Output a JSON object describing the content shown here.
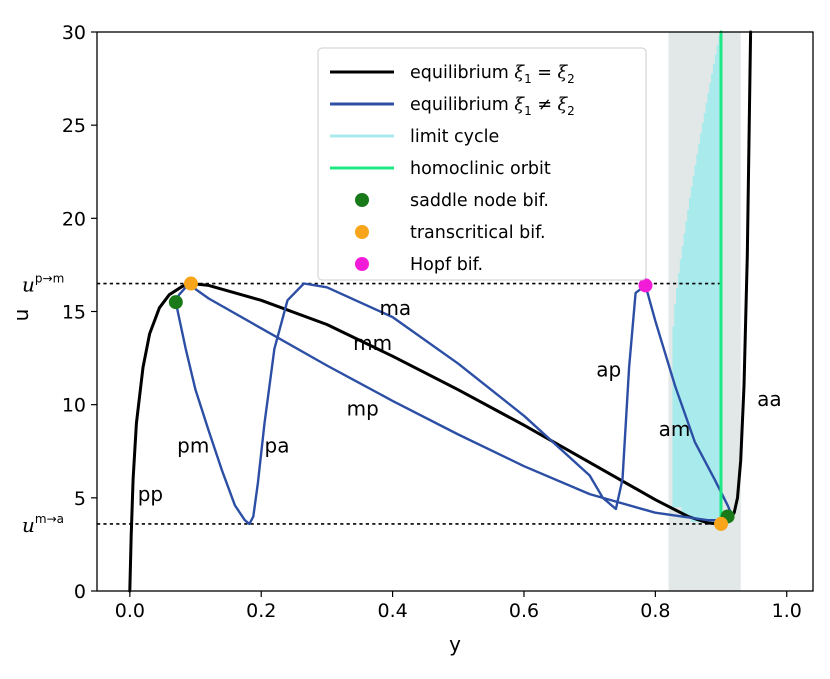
{
  "chart_data": {
    "type": "line",
    "xlabel": "y",
    "ylabel": "u",
    "xlim": [
      -0.05,
      1.04
    ],
    "ylim": [
      0,
      30
    ],
    "xticks": [
      0.0,
      0.2,
      0.4,
      0.6,
      0.8,
      1.0
    ],
    "xtick_labels": [
      "0.0",
      "0.2",
      "0.4",
      "0.6",
      "0.8",
      "1.0"
    ],
    "yticks": [
      0,
      5,
      10,
      15,
      20,
      25,
      30
    ],
    "ytick_labels": [
      "0",
      "5",
      "10",
      "15",
      "20",
      "25",
      "30"
    ],
    "threshold_lines": [
      {
        "name": "u_p_to_m",
        "label_main": "u",
        "label_sup": "p→m",
        "value": 16.5
      },
      {
        "name": "u_m_to_a",
        "label_main": "u",
        "label_sup": "m→a",
        "value": 3.6
      }
    ],
    "shaded_region": {
      "x_start": 0.82,
      "x_end": 0.93,
      "color": "#e2e8e8"
    },
    "series": [
      {
        "name": "equilibrium ξ1 = ξ2",
        "color": "#000000",
        "x": [
          0.0,
          0.002,
          0.005,
          0.01,
          0.02,
          0.03,
          0.045,
          0.06,
          0.08,
          0.093,
          0.12,
          0.2,
          0.3,
          0.4,
          0.5,
          0.6,
          0.7,
          0.8,
          0.85,
          0.88,
          0.9,
          0.91,
          0.92,
          0.925,
          0.93,
          0.935,
          0.94,
          0.945
        ],
        "y": [
          0.0,
          3.0,
          6.0,
          9.0,
          12.0,
          13.8,
          15.2,
          15.9,
          16.35,
          16.5,
          16.4,
          15.6,
          14.3,
          12.6,
          10.8,
          8.9,
          6.9,
          4.9,
          4.0,
          3.65,
          3.6,
          3.7,
          4.2,
          5.0,
          7.0,
          11.0,
          18.0,
          30.0
        ]
      },
      {
        "name": "equilibrium ξ1 ≠ ξ2",
        "color": "#2c4fa5",
        "x": [
          0.07,
          0.085,
          0.1,
          0.12,
          0.14,
          0.16,
          0.175,
          0.182,
          0.188,
          0.195,
          0.205,
          0.22,
          0.24,
          0.265,
          0.3,
          0.4,
          0.5,
          0.6,
          0.7,
          0.72,
          0.74,
          0.75,
          0.76,
          0.77,
          0.785,
          0.8,
          0.83,
          0.86,
          0.89,
          0.91,
          0.915,
          0.905,
          0.88,
          0.8,
          0.7,
          0.6,
          0.5,
          0.4,
          0.3,
          0.2,
          0.12,
          0.1,
          0.093,
          0.085,
          0.075,
          0.07
        ],
        "y": [
          15.5,
          13.0,
          10.8,
          8.6,
          6.5,
          4.6,
          3.8,
          3.6,
          4.0,
          5.8,
          9.0,
          13.0,
          15.6,
          16.5,
          16.3,
          14.7,
          12.2,
          9.4,
          6.2,
          5.0,
          4.4,
          6.0,
          12.0,
          16.0,
          16.4,
          14.5,
          11.0,
          8.0,
          6.0,
          4.6,
          4.2,
          3.8,
          3.8,
          4.2,
          5.2,
          6.7,
          8.4,
          10.2,
          12.1,
          14.1,
          15.7,
          16.2,
          16.5,
          16.3,
          15.9,
          15.5
        ]
      },
      {
        "name": "limit cycle",
        "color": "#a9ebec",
        "x": [
          0.84,
          0.85,
          0.86,
          0.87,
          0.88,
          0.89
        ],
        "y": [
          15.0,
          19.0,
          22.0,
          25.0,
          27.5,
          29.5
        ]
      },
      {
        "name": "homoclinic orbit",
        "color": "#1de884",
        "x": [
          0.9,
          0.9
        ],
        "y": [
          3.6,
          30.0
        ]
      }
    ],
    "markers": [
      {
        "name": "saddle node bif.",
        "color": "#1a7a1a",
        "points": [
          {
            "x": 0.07,
            "y": 15.5
          },
          {
            "x": 0.91,
            "y": 4.0
          }
        ]
      },
      {
        "name": "transcritical bif.",
        "color": "#f8a51b",
        "points": [
          {
            "x": 0.093,
            "y": 16.5
          },
          {
            "x": 0.9,
            "y": 3.6
          }
        ]
      },
      {
        "name": "Hopf bif.",
        "color": "#f21cd8",
        "points": [
          {
            "x": 0.785,
            "y": 16.4
          }
        ]
      }
    ],
    "branch_labels": [
      {
        "text": "pp",
        "x": 0.012,
        "y": 5.2
      },
      {
        "text": "pm",
        "x": 0.072,
        "y": 7.8
      },
      {
        "text": "pa",
        "x": 0.205,
        "y": 7.8
      },
      {
        "text": "ma",
        "x": 0.38,
        "y": 15.2
      },
      {
        "text": "mm",
        "x": 0.34,
        "y": 13.3
      },
      {
        "text": "mp",
        "x": 0.33,
        "y": 9.8
      },
      {
        "text": "ap",
        "x": 0.71,
        "y": 11.9
      },
      {
        "text": "am",
        "x": 0.805,
        "y": 8.7
      },
      {
        "text": "aa",
        "x": 0.955,
        "y": 10.3
      }
    ],
    "legend": {
      "placement": "top-center",
      "entries": [
        {
          "kind": "line",
          "color": "#000000",
          "label": "equilibrium ",
          "math": "ξ",
          "sub1": "1",
          "op": " = ",
          "math2": "ξ",
          "sub2": "2"
        },
        {
          "kind": "line",
          "color": "#2c4fa5",
          "label": "equilibrium ",
          "math": "ξ",
          "sub1": "1",
          "op": " ≠ ",
          "math2": "ξ",
          "sub2": "2"
        },
        {
          "kind": "line",
          "color": "#a9ebec",
          "label": "limit cycle"
        },
        {
          "kind": "line",
          "color": "#1de884",
          "label": "homoclinic orbit"
        },
        {
          "kind": "dot",
          "color": "#1a7a1a",
          "label": "saddle node bif."
        },
        {
          "kind": "dot",
          "color": "#f8a51b",
          "label": "transcritical bif."
        },
        {
          "kind": "dot",
          "color": "#f21cd8",
          "label": "Hopf bif."
        }
      ]
    }
  }
}
